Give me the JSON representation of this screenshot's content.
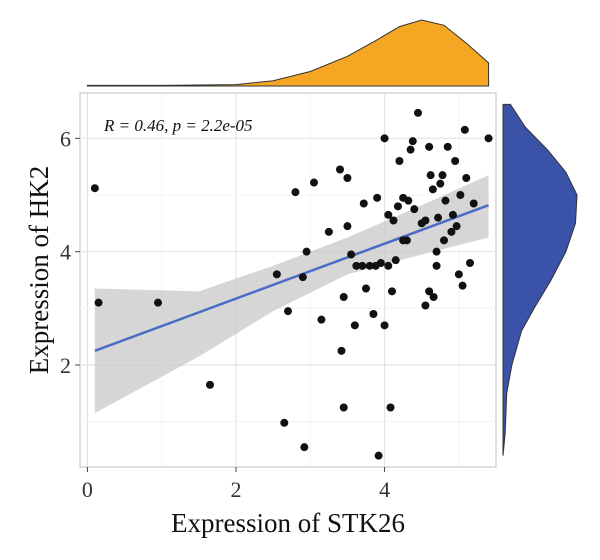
{
  "chart_data": {
    "type": "scatter",
    "xlabel": "Expression of STK26",
    "ylabel": "Expression of HK2",
    "xlim": [
      -0.1,
      5.5
    ],
    "ylim": [
      0.2,
      6.8
    ],
    "x_ticks": [
      0,
      2,
      4
    ],
    "y_ticks": [
      2,
      4,
      6
    ],
    "grid": true,
    "annotation": "R = 0.46, p = 2.2e-05",
    "regression": {
      "color": "#4a6cc4",
      "band_color": "#c8c8c8",
      "line": [
        [
          0.1,
          2.25
        ],
        [
          5.4,
          4.82
        ]
      ],
      "band_upper": [
        [
          0.1,
          3.35
        ],
        [
          1.5,
          3.3
        ],
        [
          2.5,
          3.75
        ],
        [
          3.5,
          4.25
        ],
        [
          4.5,
          4.82
        ],
        [
          5.4,
          5.35
        ]
      ],
      "band_lower": [
        [
          0.1,
          1.15
        ],
        [
          1.5,
          2.15
        ],
        [
          2.5,
          2.95
        ],
        [
          3.5,
          3.6
        ],
        [
          4.5,
          3.95
        ],
        [
          5.4,
          4.25
        ]
      ]
    },
    "points": [
      {
        "x": 0.1,
        "y": 5.12
      },
      {
        "x": 0.15,
        "y": 3.1
      },
      {
        "x": 0.95,
        "y": 3.1
      },
      {
        "x": 1.65,
        "y": 1.65
      },
      {
        "x": 2.55,
        "y": 3.6
      },
      {
        "x": 2.65,
        "y": 0.98
      },
      {
        "x": 2.7,
        "y": 2.95
      },
      {
        "x": 2.8,
        "y": 5.05
      },
      {
        "x": 2.9,
        "y": 3.55
      },
      {
        "x": 2.92,
        "y": 0.55
      },
      {
        "x": 2.95,
        "y": 4.0
      },
      {
        "x": 3.05,
        "y": 5.22
      },
      {
        "x": 3.15,
        "y": 2.8
      },
      {
        "x": 3.25,
        "y": 4.35
      },
      {
        "x": 3.4,
        "y": 5.45
      },
      {
        "x": 3.42,
        "y": 2.25
      },
      {
        "x": 3.45,
        "y": 3.2
      },
      {
        "x": 3.45,
        "y": 1.25
      },
      {
        "x": 3.5,
        "y": 5.3
      },
      {
        "x": 3.5,
        "y": 4.45
      },
      {
        "x": 3.55,
        "y": 3.95
      },
      {
        "x": 3.6,
        "y": 2.7
      },
      {
        "x": 3.62,
        "y": 3.75
      },
      {
        "x": 3.7,
        "y": 3.75
      },
      {
        "x": 3.72,
        "y": 4.85
      },
      {
        "x": 3.75,
        "y": 3.35
      },
      {
        "x": 3.8,
        "y": 3.75
      },
      {
        "x": 3.85,
        "y": 2.9
      },
      {
        "x": 3.88,
        "y": 3.75
      },
      {
        "x": 3.9,
        "y": 4.95
      },
      {
        "x": 3.92,
        "y": 0.4
      },
      {
        "x": 3.95,
        "y": 3.8
      },
      {
        "x": 4.0,
        "y": 2.7
      },
      {
        "x": 4.0,
        "y": 6.0
      },
      {
        "x": 4.05,
        "y": 3.75
      },
      {
        "x": 4.05,
        "y": 4.65
      },
      {
        "x": 4.08,
        "y": 1.25
      },
      {
        "x": 4.1,
        "y": 3.3
      },
      {
        "x": 4.12,
        "y": 4.55
      },
      {
        "x": 4.15,
        "y": 3.85
      },
      {
        "x": 4.18,
        "y": 4.8
      },
      {
        "x": 4.2,
        "y": 5.6
      },
      {
        "x": 4.25,
        "y": 4.95
      },
      {
        "x": 4.25,
        "y": 4.2
      },
      {
        "x": 4.3,
        "y": 4.2
      },
      {
        "x": 4.32,
        "y": 4.9
      },
      {
        "x": 4.35,
        "y": 5.8
      },
      {
        "x": 4.38,
        "y": 5.95
      },
      {
        "x": 4.4,
        "y": 4.75
      },
      {
        "x": 4.45,
        "y": 6.45
      },
      {
        "x": 4.5,
        "y": 4.5
      },
      {
        "x": 4.55,
        "y": 4.55
      },
      {
        "x": 4.55,
        "y": 3.05
      },
      {
        "x": 4.6,
        "y": 3.3
      },
      {
        "x": 4.6,
        "y": 5.85
      },
      {
        "x": 4.62,
        "y": 5.35
      },
      {
        "x": 4.65,
        "y": 5.1
      },
      {
        "x": 4.66,
        "y": 3.2
      },
      {
        "x": 4.7,
        "y": 3.75
      },
      {
        "x": 4.7,
        "y": 4.0
      },
      {
        "x": 4.72,
        "y": 4.6
      },
      {
        "x": 4.75,
        "y": 5.2
      },
      {
        "x": 4.78,
        "y": 5.35
      },
      {
        "x": 4.8,
        "y": 4.2
      },
      {
        "x": 4.82,
        "y": 4.9
      },
      {
        "x": 4.85,
        "y": 5.85
      },
      {
        "x": 4.9,
        "y": 4.35
      },
      {
        "x": 4.92,
        "y": 4.65
      },
      {
        "x": 4.95,
        "y": 5.6
      },
      {
        "x": 4.97,
        "y": 4.45
      },
      {
        "x": 5.0,
        "y": 3.6
      },
      {
        "x": 5.02,
        "y": 5.0
      },
      {
        "x": 5.05,
        "y": 3.4
      },
      {
        "x": 5.08,
        "y": 6.15
      },
      {
        "x": 5.1,
        "y": 5.3
      },
      {
        "x": 5.15,
        "y": 3.8
      },
      {
        "x": 5.2,
        "y": 4.85
      },
      {
        "x": 5.4,
        "y": 6.0
      }
    ],
    "marginal_top": {
      "color": "#f5a623",
      "density": [
        [
          0.0,
          0.01
        ],
        [
          1.0,
          0.01
        ],
        [
          2.0,
          0.02
        ],
        [
          2.5,
          0.08
        ],
        [
          3.0,
          0.22
        ],
        [
          3.5,
          0.45
        ],
        [
          3.9,
          0.7
        ],
        [
          4.2,
          0.9
        ],
        [
          4.5,
          1.0
        ],
        [
          4.8,
          0.92
        ],
        [
          5.1,
          0.65
        ],
        [
          5.4,
          0.35
        ]
      ]
    },
    "marginal_right": {
      "color": "#3a52a8",
      "density": [
        [
          0.4,
          0.0
        ],
        [
          0.8,
          0.03
        ],
        [
          1.5,
          0.05
        ],
        [
          2.0,
          0.12
        ],
        [
          2.6,
          0.25
        ],
        [
          3.0,
          0.42
        ],
        [
          3.5,
          0.65
        ],
        [
          4.0,
          0.85
        ],
        [
          4.5,
          0.98
        ],
        [
          5.0,
          1.0
        ],
        [
          5.4,
          0.85
        ],
        [
          5.8,
          0.6
        ],
        [
          6.2,
          0.3
        ],
        [
          6.6,
          0.1
        ]
      ]
    }
  }
}
